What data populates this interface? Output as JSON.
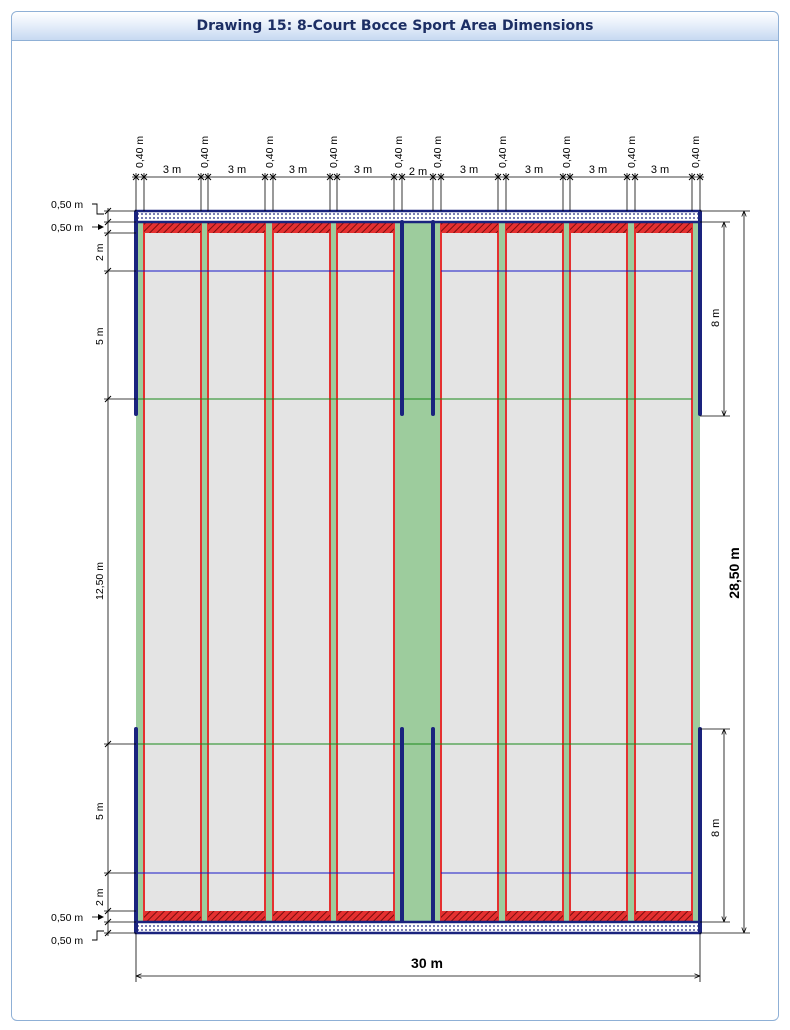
{
  "title": "Drawing 15: 8-Court Bocce Sport Area Dimensions",
  "dims": {
    "gap": "0,40 m",
    "court_width": "3 m",
    "center_width": "2 m",
    "half_m": "0,50 m",
    "two_m": "2 m",
    "five_m": "5 m",
    "middle": "12,50 m",
    "eight_m": "8 m",
    "total_length": "28,50 m",
    "total_width": "30 m"
  },
  "colors": {
    "frame_blue": "#1a237e",
    "court_fill": "#e4e4e4",
    "court_border": "#e53030",
    "turf": "#9dcc9d",
    "hatch": "#b81a1a",
    "line_blue": "#1818c8",
    "line_green": "#1a8a1a"
  }
}
